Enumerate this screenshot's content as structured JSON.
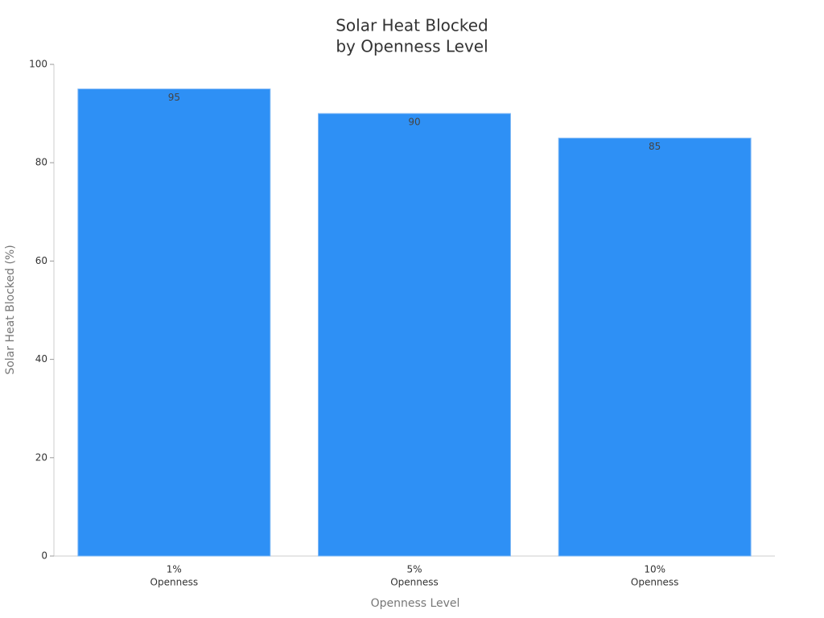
{
  "chart_data": {
    "type": "bar",
    "title": [
      "Solar Heat Blocked",
      "by Openness Level"
    ],
    "x_label": "Openness Level",
    "y_label": "Solar Heat Blocked (%)",
    "categories": [
      [
        "1%",
        "Openness"
      ],
      [
        "5%",
        "Openness"
      ],
      [
        "10%",
        "Openness"
      ]
    ],
    "values": [
      95,
      90,
      85
    ],
    "color": "#2e90f5",
    "ylim": [
      0,
      100
    ],
    "yticks": [
      0,
      20,
      40,
      60,
      80,
      100
    ],
    "grid": false
  }
}
